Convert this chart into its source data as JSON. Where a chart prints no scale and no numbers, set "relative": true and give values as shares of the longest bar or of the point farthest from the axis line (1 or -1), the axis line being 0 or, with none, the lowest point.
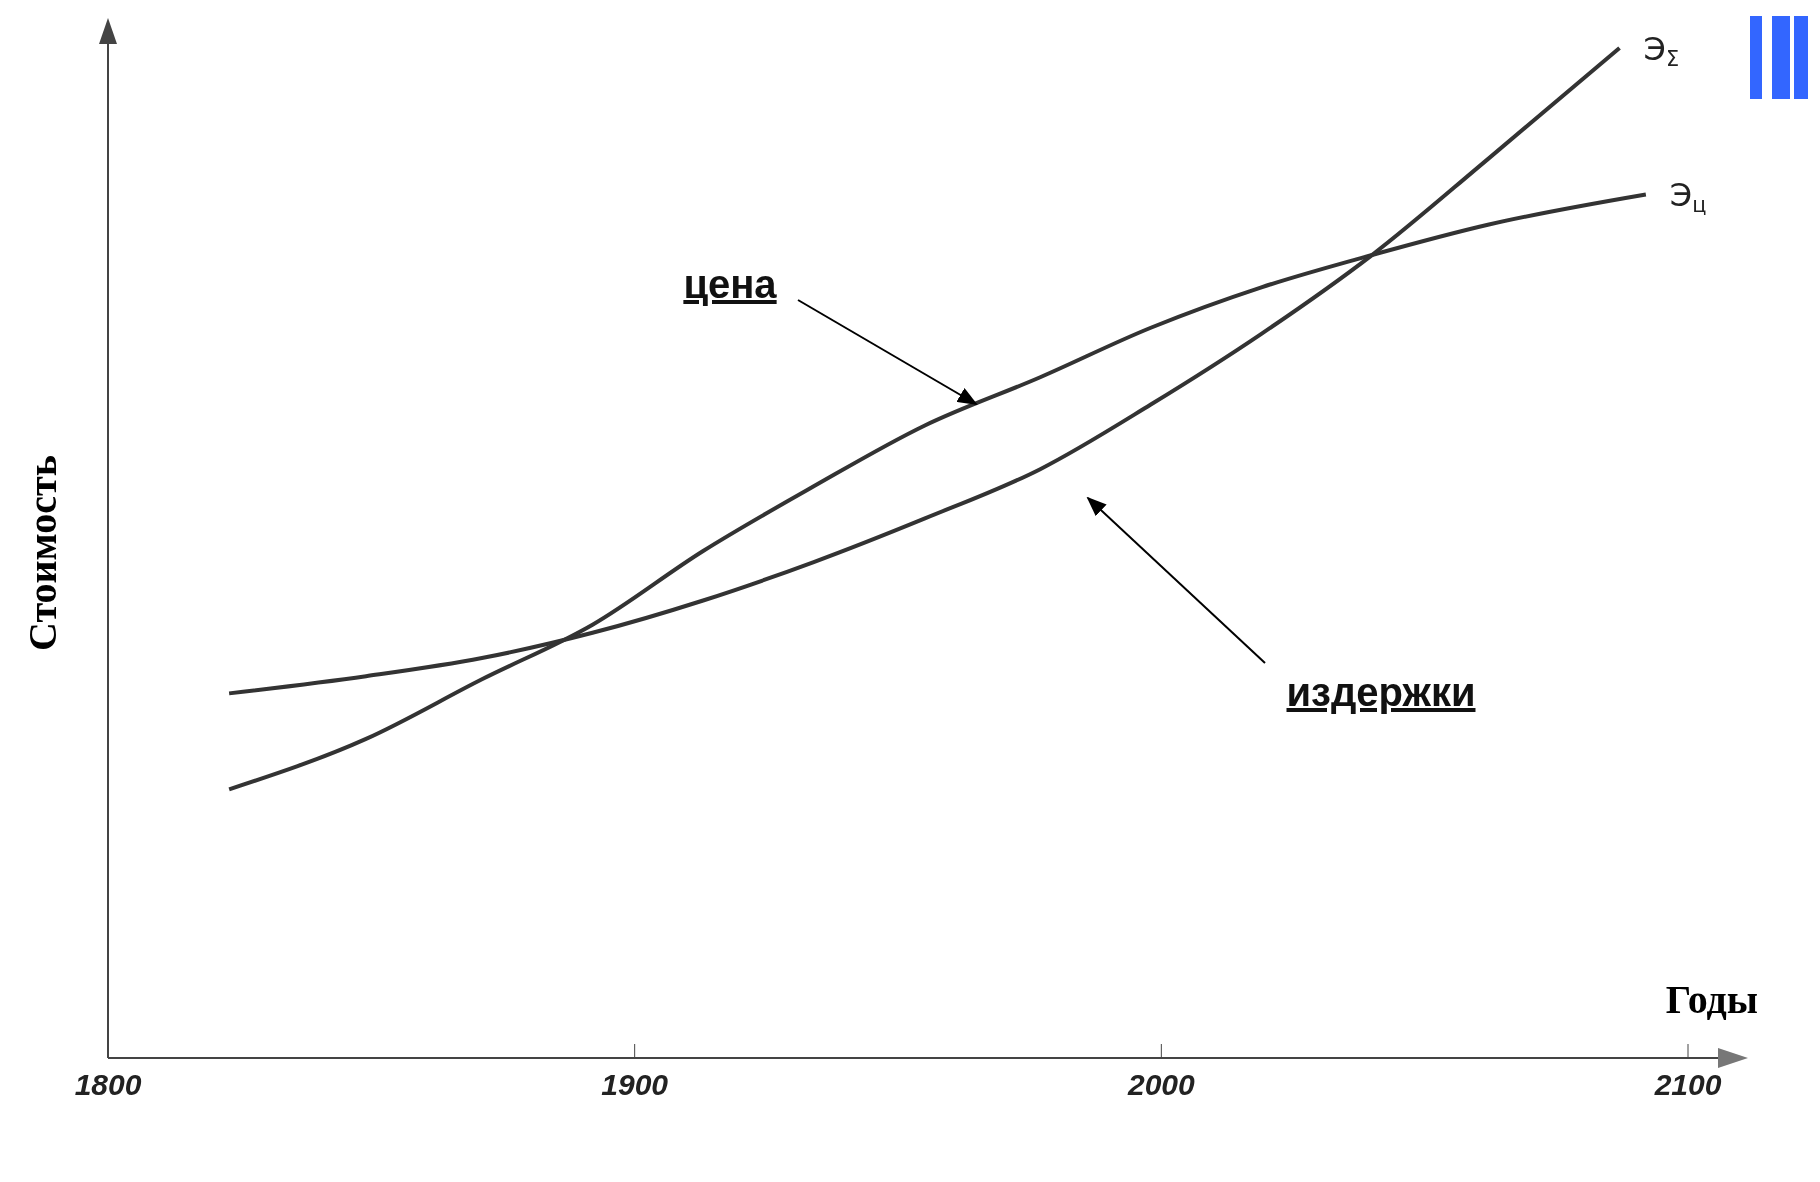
{
  "chart_data": {
    "type": "line",
    "relative": true,
    "xlabel": "Годы",
    "ylabel": "Стоимость",
    "xlim": [
      1800,
      2100
    ],
    "xticks": [
      1800,
      1900,
      2000,
      2100
    ],
    "series": [
      {
        "name": "Э$_{ц}$",
        "color": "#333333",
        "x": [
          1823,
          1849,
          1871,
          1892,
          1913,
          1934,
          1955,
          1977,
          1998,
          2019,
          2040,
          2062,
          2092
        ],
        "values": [
          0.266,
          0.316,
          0.375,
          0.429,
          0.502,
          0.566,
          0.626,
          0.674,
          0.723,
          0.763,
          0.795,
          0.825,
          0.855
        ]
      },
      {
        "name": "Э$_{Σ}$",
        "color": "#333333",
        "x": [
          1823,
          1849,
          1871,
          1892,
          1913,
          1934,
          1955,
          1977,
          1998,
          2019,
          2040,
          2062,
          2087
        ],
        "values": [
          0.361,
          0.378,
          0.396,
          0.421,
          0.453,
          0.491,
          0.534,
          0.583,
          0.647,
          0.717,
          0.795,
          0.89,
          1
        ]
      }
    ],
    "annotations": [
      "цена",
      "издержки"
    ]
  }
}
